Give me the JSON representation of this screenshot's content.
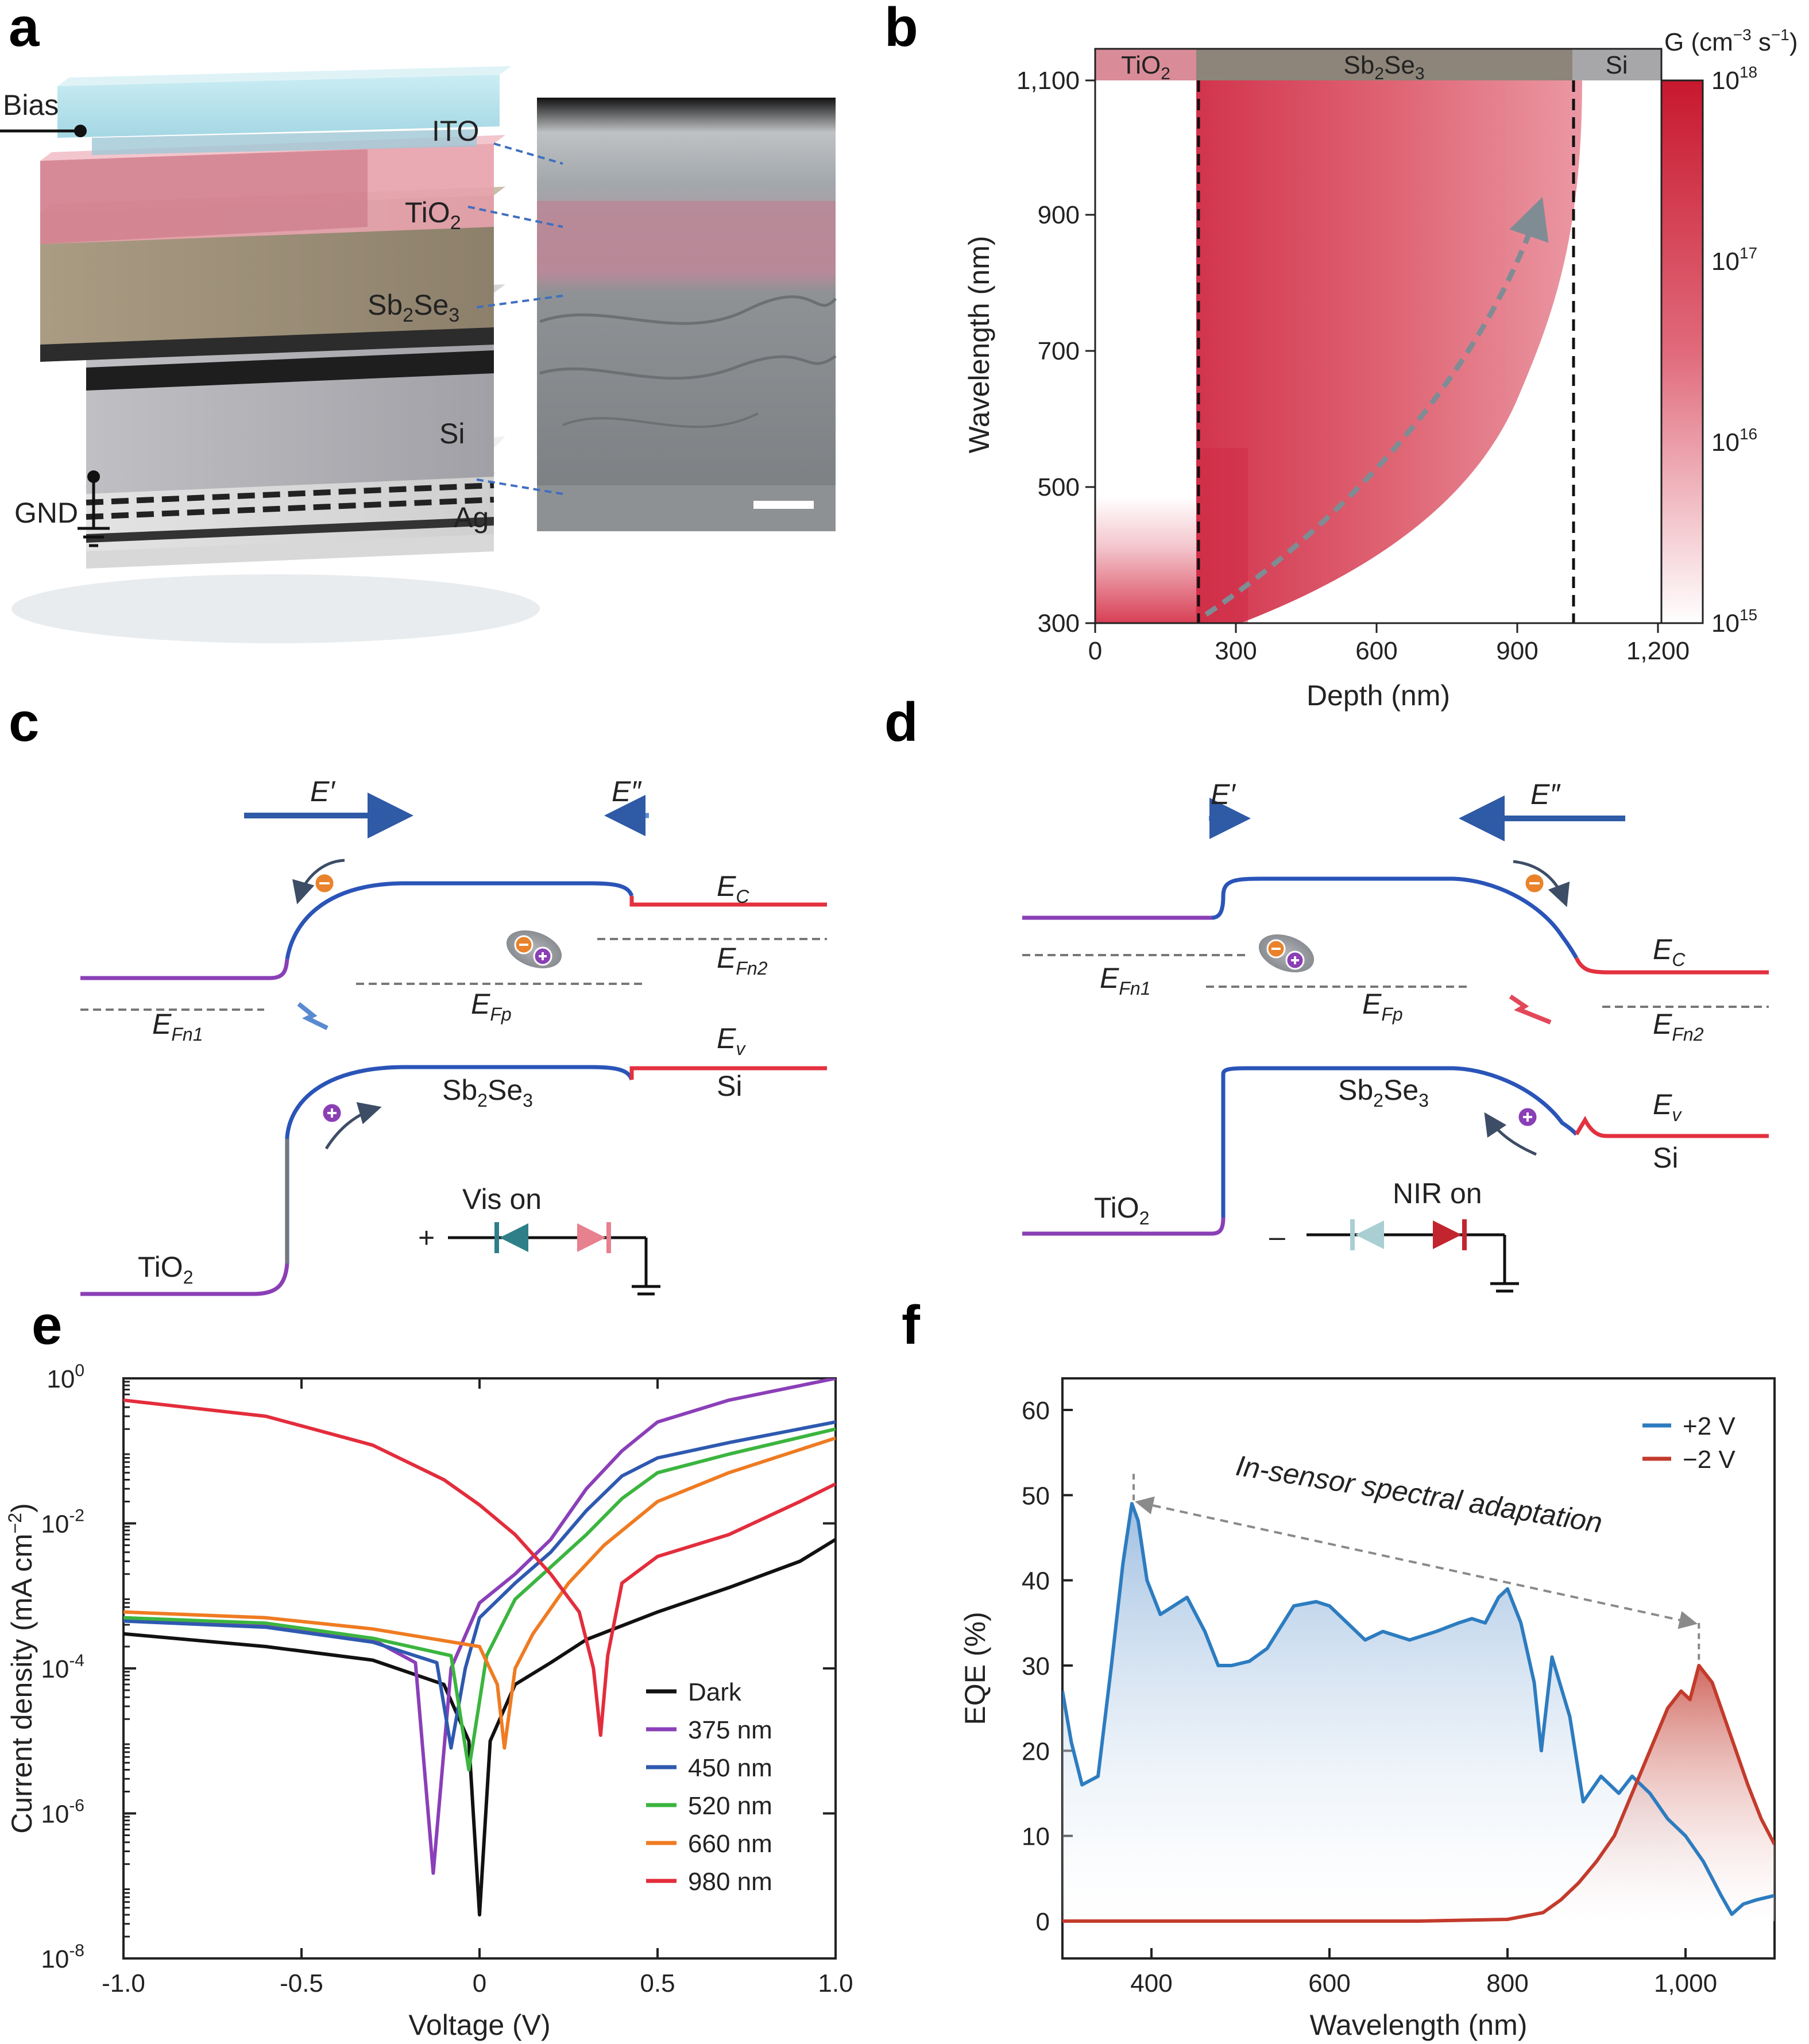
{
  "panels": {
    "a": "a",
    "b": "b",
    "c": "c",
    "d": "d",
    "e": "e",
    "f": "f"
  },
  "panel_a": {
    "bias": "Bias",
    "gnd": "GND",
    "layers": {
      "ito": "ITO",
      "tio2": "TiO",
      "sb2se3": "Sb",
      "si": "Si",
      "ag": "Ag"
    }
  },
  "panel_b": {
    "header": {
      "tio2": "TiO",
      "sb2se3": "Sb",
      "si": "Si"
    },
    "xlabel": "Depth (nm)",
    "ylabel": "Wavelength (nm)",
    "xticks": [
      "0",
      "300",
      "600",
      "900",
      "1,200"
    ],
    "yticks": [
      "300",
      "500",
      "700",
      "900",
      "1,100"
    ],
    "colorbar_title": "G (cm",
    "colorbar_ticks": [
      "10",
      "10",
      "10",
      "10"
    ],
    "colorbar_exps": [
      "18",
      "17",
      "16",
      "15"
    ]
  },
  "panel_c": {
    "e_prime": "E′",
    "e_dprime": "E″",
    "ec": "E",
    "ev": "E",
    "efn1": "E",
    "efn2": "E",
    "efp": "E",
    "sb2se3": "Sb",
    "si": "Si",
    "tio2": "TiO",
    "switch": "Vis on",
    "polarity": "+"
  },
  "panel_d": {
    "e_prime": "E′",
    "e_dprime": "E″",
    "ec": "E",
    "ev": "E",
    "efn1": "E",
    "efn2": "E",
    "efp": "E",
    "sb2se3": "Sb",
    "si": "Si",
    "tio2": "TiO",
    "switch": "NIR on",
    "polarity": "–"
  },
  "chart_data": [
    {
      "panel": "e",
      "type": "line",
      "xlabel": "Voltage (V)",
      "ylabel": "Current density (mA cm",
      "xlim": [
        -1.0,
        1.0
      ],
      "ylim_log10": [
        -8,
        0
      ],
      "xticks": [
        "-1.0",
        "-0.5",
        "0",
        "0.5",
        "1.0"
      ],
      "yticks": [
        "10",
        "10",
        "10",
        "10",
        "10"
      ],
      "ytick_exps": [
        "0",
        "-2",
        "-4",
        "-6",
        "-8"
      ],
      "legend_position": "bottom-right",
      "series": [
        {
          "name": "Dark",
          "color": "#111111",
          "zero_v": 0.0,
          "points": [
            [
              -1.0,
              0.0003
            ],
            [
              -0.6,
              0.0002
            ],
            [
              -0.3,
              0.00013
            ],
            [
              -0.1,
              6e-05
            ],
            [
              -0.03,
              1e-05
            ],
            [
              0.0,
              4e-08
            ],
            [
              0.03,
              1e-05
            ],
            [
              0.1,
              6e-05
            ],
            [
              0.2,
              0.00012
            ],
            [
              0.3,
              0.00025
            ],
            [
              0.5,
              0.0006
            ],
            [
              0.7,
              0.0013
            ],
            [
              0.9,
              0.003
            ],
            [
              1.0,
              0.006
            ]
          ]
        },
        {
          "name": "375 nm",
          "color": "#8b3fb8",
          "zero_v": -0.13,
          "points": [
            [
              -1.0,
              0.0005
            ],
            [
              -0.6,
              0.0004
            ],
            [
              -0.3,
              0.00025
            ],
            [
              -0.18,
              0.00012
            ],
            [
              -0.13,
              1.5e-07
            ],
            [
              -0.08,
              0.0001
            ],
            [
              0.0,
              0.0008
            ],
            [
              0.1,
              0.002
            ],
            [
              0.2,
              0.006
            ],
            [
              0.3,
              0.03
            ],
            [
              0.4,
              0.1
            ],
            [
              0.5,
              0.25
            ],
            [
              0.7,
              0.5
            ],
            [
              1.0,
              1.0
            ]
          ]
        },
        {
          "name": "450 nm",
          "color": "#2e59b0",
          "zero_v": -0.08,
          "points": [
            [
              -1.0,
              0.00045
            ],
            [
              -0.6,
              0.00037
            ],
            [
              -0.3,
              0.00023
            ],
            [
              -0.12,
              0.00012
            ],
            [
              -0.08,
              8e-06
            ],
            [
              -0.04,
              0.0001
            ],
            [
              0.0,
              0.0005
            ],
            [
              0.1,
              0.0015
            ],
            [
              0.2,
              0.004
            ],
            [
              0.3,
              0.015
            ],
            [
              0.4,
              0.045
            ],
            [
              0.5,
              0.08
            ],
            [
              0.7,
              0.13
            ],
            [
              1.0,
              0.25
            ]
          ]
        },
        {
          "name": "520 nm",
          "color": "#3bb53f",
          "zero_v": -0.03,
          "points": [
            [
              -1.0,
              0.0005
            ],
            [
              -0.6,
              0.00042
            ],
            [
              -0.3,
              0.00026
            ],
            [
              -0.08,
              0.00015
            ],
            [
              -0.03,
              4e-06
            ],
            [
              0.02,
              0.00015
            ],
            [
              0.1,
              0.0009
            ],
            [
              0.2,
              0.0025
            ],
            [
              0.3,
              0.007
            ],
            [
              0.4,
              0.022
            ],
            [
              0.5,
              0.05
            ],
            [
              0.7,
              0.09
            ],
            [
              1.0,
              0.2
            ]
          ]
        },
        {
          "name": "660 nm",
          "color": "#ef7b22",
          "zero_v": 0.07,
          "points": [
            [
              -1.0,
              0.0006
            ],
            [
              -0.6,
              0.0005
            ],
            [
              -0.3,
              0.00035
            ],
            [
              0.0,
              0.0002
            ],
            [
              0.05,
              6e-05
            ],
            [
              0.07,
              8e-06
            ],
            [
              0.1,
              0.0001
            ],
            [
              0.15,
              0.0003
            ],
            [
              0.25,
              0.0015
            ],
            [
              0.35,
              0.005
            ],
            [
              0.5,
              0.02
            ],
            [
              0.7,
              0.05
            ],
            [
              1.0,
              0.15
            ]
          ]
        },
        {
          "name": "980 nm",
          "color": "#e32d3c",
          "zero_v": 0.34,
          "points": [
            [
              -1.0,
              0.5
            ],
            [
              -0.6,
              0.3
            ],
            [
              -0.3,
              0.12
            ],
            [
              -0.1,
              0.04
            ],
            [
              0.0,
              0.018
            ],
            [
              0.1,
              0.007
            ],
            [
              0.2,
              0.002
            ],
            [
              0.28,
              0.0006
            ],
            [
              0.32,
              0.0001
            ],
            [
              0.34,
              1.2e-05
            ],
            [
              0.36,
              0.00015
            ],
            [
              0.4,
              0.0015
            ],
            [
              0.5,
              0.0035
            ],
            [
              0.7,
              0.007
            ],
            [
              0.9,
              0.02
            ],
            [
              1.0,
              0.035
            ]
          ]
        }
      ]
    },
    {
      "panel": "f",
      "type": "area",
      "xlabel": "Wavelength (nm)",
      "ylabel": "EQE (%)",
      "xlim": [
        300,
        1100
      ],
      "ylim": [
        0,
        60
      ],
      "xticks": [
        "400",
        "600",
        "800",
        "1,000"
      ],
      "yticks": [
        "0",
        "10",
        "20",
        "30",
        "40",
        "50",
        "60"
      ],
      "annotation": "In-sensor spectral adaptation",
      "legend_position": "top-right",
      "series": [
        {
          "name": "+2 V",
          "color": "#2d7cc0",
          "x": [
            300,
            310,
            322,
            340,
            355,
            368,
            378,
            385,
            395,
            410,
            425,
            440,
            460,
            475,
            490,
            510,
            530,
            560,
            585,
            600,
            620,
            640,
            660,
            690,
            720,
            745,
            760,
            775,
            790,
            800,
            815,
            830,
            838,
            850,
            870,
            885,
            905,
            925,
            940,
            960,
            980,
            1000,
            1020,
            1040,
            1052,
            1065,
            1080,
            1100
          ],
          "y": [
            27,
            21,
            16,
            17,
            30,
            42,
            49,
            47,
            40,
            36,
            37,
            38,
            34,
            30,
            30,
            30.5,
            32,
            37,
            37.5,
            37,
            35,
            33,
            34,
            33,
            34,
            35,
            35.5,
            35,
            38,
            39,
            35,
            28,
            20,
            31,
            24,
            14,
            17,
            15,
            17,
            15,
            12,
            10,
            7,
            3,
            0.8,
            2,
            2.5,
            3
          ]
        },
        {
          "name": "−2 V",
          "color": "#c33b2c",
          "x": [
            300,
            700,
            800,
            840,
            860,
            880,
            900,
            920,
            940,
            960,
            980,
            995,
            1005,
            1015,
            1030,
            1050,
            1070,
            1085,
            1100
          ],
          "y": [
            0,
            0,
            0.2,
            1,
            2.5,
            4.5,
            7,
            10,
            15,
            20,
            25,
            27,
            26,
            30,
            28,
            22,
            16,
            12,
            9
          ]
        }
      ]
    }
  ]
}
